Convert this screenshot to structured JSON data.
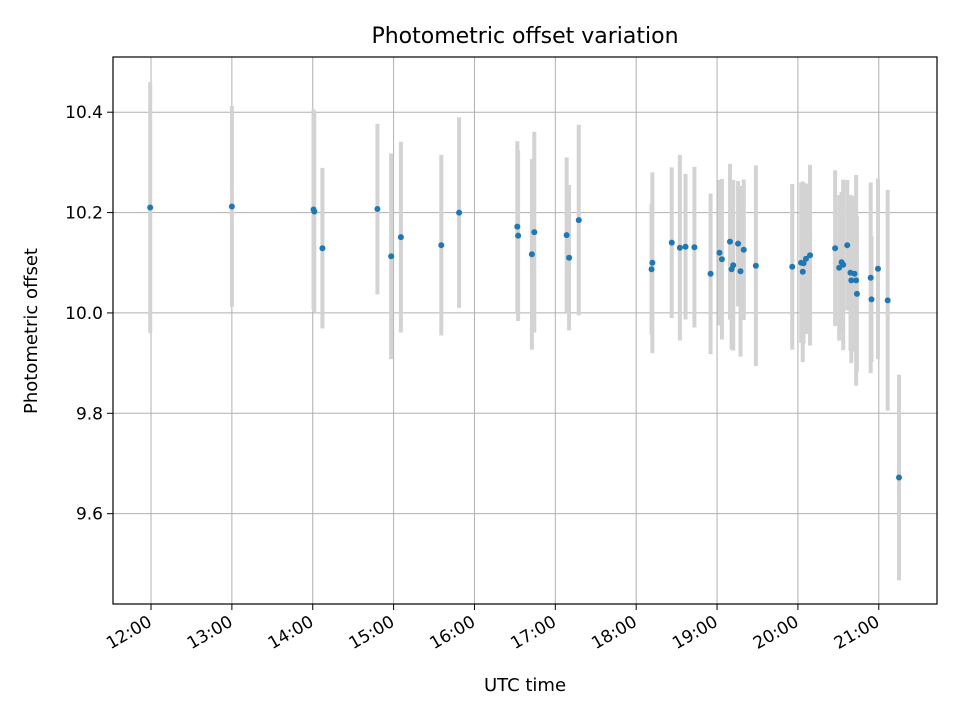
{
  "chart_data": {
    "type": "scatter",
    "title": "Photometric offset variation",
    "xlabel": "UTC time",
    "ylabel": "Photometric offset",
    "x_ticks": [
      "12:00",
      "13:00",
      "14:00",
      "15:00",
      "16:00",
      "17:00",
      "18:00",
      "19:00",
      "20:00",
      "21:00"
    ],
    "y_ticks": [
      "9.6",
      "9.8",
      "10.0",
      "10.2",
      "10.4"
    ],
    "x_tick_hours": [
      12,
      13,
      14,
      15,
      16,
      17,
      18,
      19,
      20,
      21
    ],
    "y_tick_values": [
      9.6,
      9.8,
      10.0,
      10.2,
      10.4
    ],
    "xlim": [
      11.53,
      21.72
    ],
    "ylim": [
      9.42,
      10.51
    ],
    "grid": true,
    "colors": {
      "point": "#1f77b4",
      "errorbar": "#d3d3d3",
      "grid": "#b0b0b0"
    },
    "series": [
      {
        "x_hours": [
          11.99,
          13.0,
          14.01,
          14.02,
          14.12,
          14.8,
          14.97,
          15.09,
          15.59,
          15.81,
          16.53,
          16.54,
          16.71,
          16.74,
          17.14,
          17.17,
          17.29,
          18.19,
          18.2,
          18.44,
          18.54,
          18.61,
          18.72,
          18.92,
          19.03,
          19.06,
          19.16,
          19.18,
          19.2,
          19.26,
          19.29,
          19.33,
          19.48,
          19.93,
          20.04,
          20.06,
          20.07,
          20.1,
          20.15,
          20.46,
          20.51,
          20.54,
          20.56,
          20.61,
          20.65,
          20.66,
          20.7,
          20.72,
          20.73,
          20.9,
          20.91,
          20.99,
          21.11,
          21.25
        ],
        "y": [
          10.21,
          10.212,
          10.206,
          10.202,
          10.129,
          10.207,
          10.113,
          10.151,
          10.135,
          10.2,
          10.172,
          10.154,
          10.117,
          10.161,
          10.155,
          10.11,
          10.185,
          10.087,
          10.1,
          10.14,
          10.13,
          10.132,
          10.131,
          10.078,
          10.12,
          10.107,
          10.142,
          10.087,
          10.095,
          10.138,
          10.083,
          10.126,
          10.094,
          10.092,
          10.1,
          10.082,
          10.099,
          10.108,
          10.115,
          10.129,
          10.09,
          10.101,
          10.096,
          10.135,
          10.08,
          10.065,
          10.078,
          10.065,
          10.038,
          10.07,
          10.027,
          10.088,
          10.025,
          9.672
        ],
        "yerr": [
          0.25,
          0.2,
          0.2,
          0.2,
          0.16,
          0.17,
          0.205,
          0.19,
          0.18,
          0.19,
          0.17,
          0.17,
          0.19,
          0.2,
          0.155,
          0.145,
          0.19,
          0.13,
          0.18,
          0.15,
          0.185,
          0.145,
          0.16,
          0.16,
          0.145,
          0.16,
          0.155,
          0.16,
          0.17,
          0.125,
          0.17,
          0.14,
          0.2,
          0.165,
          0.16,
          0.18,
          0.16,
          0.15,
          0.18,
          0.155,
          0.145,
          0.14,
          0.17,
          0.13,
          0.155,
          0.165,
          0.155,
          0.21,
          0.155,
          0.19,
          0.125,
          0.18,
          0.22,
          0.205
        ]
      }
    ]
  }
}
